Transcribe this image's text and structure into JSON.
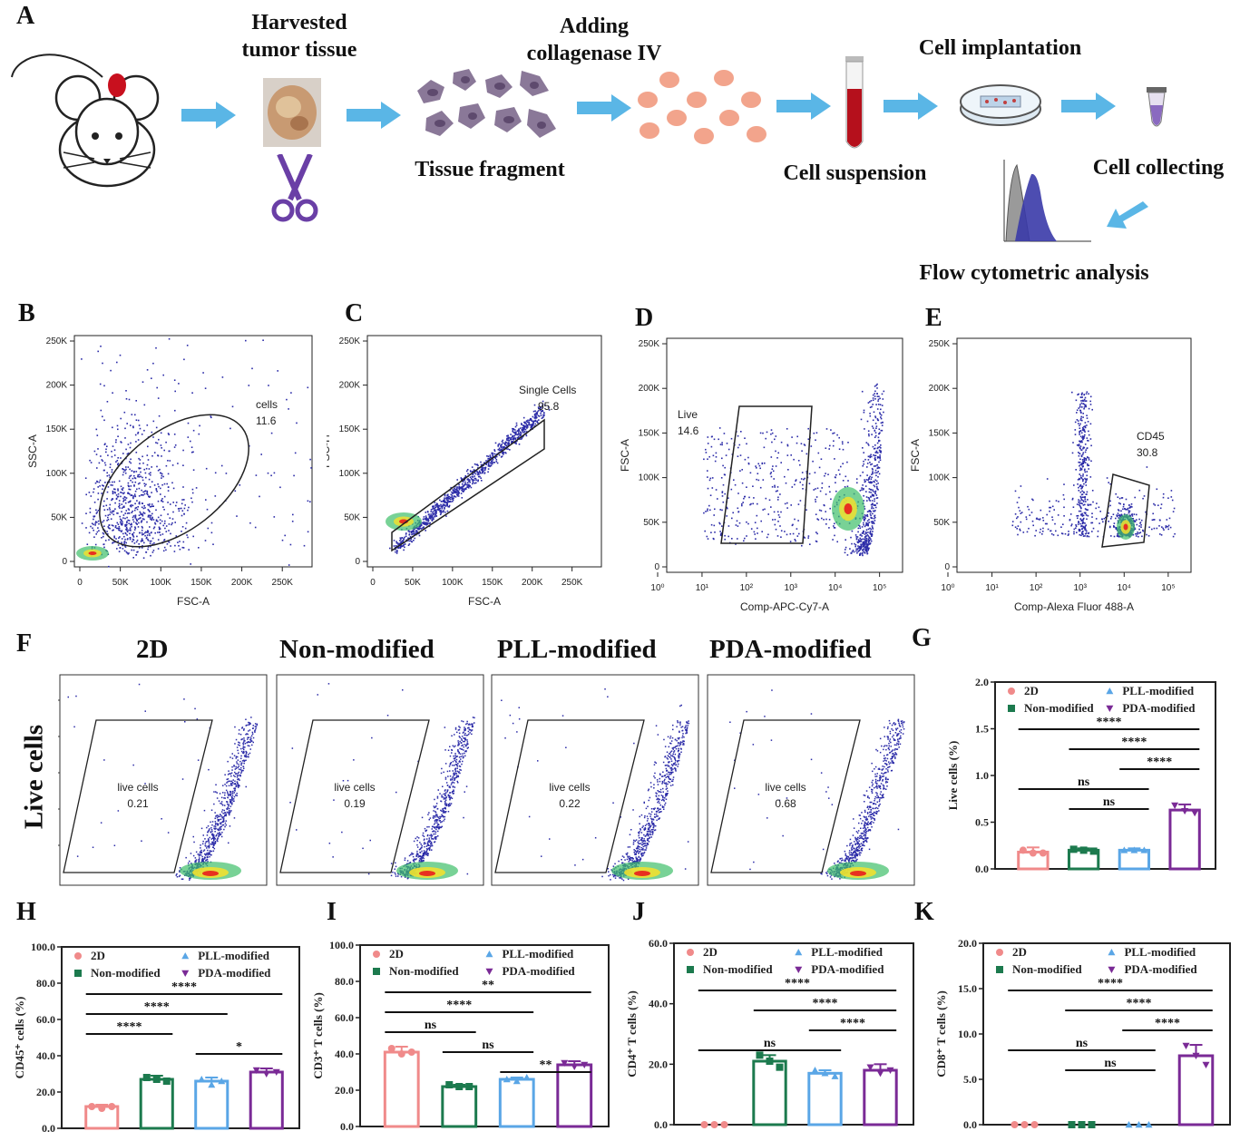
{
  "panel_a": {
    "letter": "A",
    "steps": {
      "harvested": "Harvested\ntumor tissue",
      "tissue_fragment": "Tissue fragment",
      "collagenase": "Adding\ncollagenase IV",
      "cell_suspension": "Cell suspension",
      "cell_implantation": "Cell implantation",
      "cell_collecting": "Cell collecting",
      "flow": "Flow cytometric analysis"
    },
    "colors": {
      "arrow": "#5ab6e6",
      "tumor": "#c8101e",
      "scissors": "#6a3fa6",
      "tissue": "#8a7898",
      "cells": "#f2a48c",
      "blood": "#b5101c"
    }
  },
  "flow_panels": [
    {
      "letter": "B",
      "xlabel": "FSC-A",
      "ylabel": "SSC-A",
      "yticks": [
        "0",
        "50K",
        "100K",
        "150K",
        "200K",
        "250K"
      ],
      "xticks": [
        "0",
        "50K",
        "100K",
        "150K",
        "200K",
        "250K"
      ],
      "gate_name": "cells",
      "gate_value": "11.6"
    },
    {
      "letter": "C",
      "xlabel": "FSC-A",
      "ylabel": "FSC-H",
      "yticks": [
        "0",
        "50K",
        "100K",
        "150K",
        "200K",
        "250K"
      ],
      "xticks": [
        "0",
        "50K",
        "100K",
        "150K",
        "200K",
        "250K"
      ],
      "gate_name": "Single Cells",
      "gate_value": "95.8"
    },
    {
      "letter": "D",
      "xlabel": "Comp-APC-Cy7-A",
      "ylabel": "FSC-A",
      "yticks": [
        "0",
        "50K",
        "100K",
        "150K",
        "200K",
        "250K"
      ],
      "xticks": [
        "10⁰",
        "10¹",
        "10²",
        "10³",
        "10⁴",
        "10⁵"
      ],
      "gate_name": "Live",
      "gate_value": "14.6"
    },
    {
      "letter": "E",
      "xlabel": "Comp-Alexa Fluor 488-A",
      "ylabel": "FSC-A",
      "yticks": [
        "0",
        "50K",
        "100K",
        "150K",
        "200K",
        "250K"
      ],
      "xticks": [
        "10⁰",
        "10¹",
        "10²",
        "10³",
        "10⁴",
        "10⁵"
      ],
      "gate_name": "CD45",
      "gate_value": "30.8"
    }
  ],
  "panel_f": {
    "letter": "F",
    "row_label": "Live cells",
    "plots": [
      {
        "title": "2D",
        "gate_name": "live cells",
        "gate_value": "0.21"
      },
      {
        "title": "Non-modified",
        "gate_name": "live cells",
        "gate_value": "0.19"
      },
      {
        "title": "PLL-modified",
        "gate_name": "live cells",
        "gate_value": "0.22"
      },
      {
        "title": "PDA-modified",
        "gate_name": "live cells",
        "gate_value": "0.68"
      }
    ]
  },
  "legend": {
    "labels": [
      "2D",
      "Non-modified",
      "PLL-modified",
      "PDA-modified"
    ],
    "colors": [
      "#f08a8a",
      "#1c7a4e",
      "#5aa6e6",
      "#7a2a96"
    ]
  },
  "chart_data": [
    {
      "panel": "G",
      "type": "bar",
      "ylabel": "Live cells (%)",
      "categories": [
        "2D",
        "Non-modified",
        "PLL-modified",
        "PDA-modified"
      ],
      "values": [
        0.18,
        0.2,
        0.2,
        0.63
      ],
      "errors": [
        0.05,
        0.02,
        0.02,
        0.06
      ],
      "points": [
        [
          0.2,
          0.17,
          0.17
        ],
        [
          0.21,
          0.2,
          0.19
        ],
        [
          0.2,
          0.2,
          0.2
        ],
        [
          0.68,
          0.62,
          0.6
        ]
      ],
      "yticks": [
        "0.0",
        "0.5",
        "1.0",
        "1.5",
        "2.0"
      ],
      "ylim": [
        0,
        2
      ],
      "significance": [
        {
          "from": 0,
          "to": 3,
          "label": "****"
        },
        {
          "from": 1,
          "to": 3,
          "label": "****"
        },
        {
          "from": 2,
          "to": 3,
          "label": "****"
        },
        {
          "from": 0,
          "to": 2,
          "label": "ns"
        },
        {
          "from": 1,
          "to": 2,
          "label": "ns"
        }
      ]
    },
    {
      "panel": "H",
      "type": "bar",
      "ylabel": "CD45⁺ cells (%)",
      "categories": [
        "2D",
        "Non-modified",
        "PLL-modified",
        "PDA-modified"
      ],
      "values": [
        12,
        27,
        26,
        31
      ],
      "errors": [
        1,
        2,
        2,
        2
      ],
      "points": [
        [
          12,
          11,
          12
        ],
        [
          28,
          27,
          26
        ],
        [
          27,
          24,
          26
        ],
        [
          32,
          30,
          31
        ]
      ],
      "yticks": [
        "0.0",
        "20.0",
        "40.0",
        "60.0",
        "80.0",
        "100.0"
      ],
      "ylim": [
        0,
        100
      ],
      "significance": [
        {
          "from": 0,
          "to": 3,
          "label": "****"
        },
        {
          "from": 0,
          "to": 2,
          "label": "****"
        },
        {
          "from": 0,
          "to": 1,
          "label": "****"
        },
        {
          "from": 2,
          "to": 3,
          "label": "*"
        }
      ]
    },
    {
      "panel": "I",
      "type": "bar",
      "ylabel": "CD3⁺ T cells (%)",
      "categories": [
        "2D",
        "Non-modified",
        "PLL-modified",
        "PDA-modified"
      ],
      "values": [
        41,
        22,
        26,
        34
      ],
      "errors": [
        3,
        1,
        1,
        2
      ],
      "points": [
        [
          43,
          40,
          41
        ],
        [
          23,
          22,
          22
        ],
        [
          26,
          25,
          27
        ],
        [
          35,
          33,
          34
        ]
      ],
      "yticks": [
        "0.0",
        "20.0",
        "40.0",
        "60.0",
        "80.0",
        "100.0"
      ],
      "ylim": [
        0,
        100
      ],
      "significance": [
        {
          "from": 0,
          "to": 3,
          "label": "**"
        },
        {
          "from": 0,
          "to": 2,
          "label": "****"
        },
        {
          "from": 0,
          "to": 1,
          "label": "ns"
        },
        {
          "from": 1,
          "to": 2,
          "label": "ns"
        },
        {
          "from": 2,
          "to": 3,
          "label": "**"
        }
      ]
    },
    {
      "panel": "J",
      "type": "bar",
      "ylabel": "CD4⁺ T cells (%)",
      "categories": [
        "2D",
        "Non-modified",
        "PLL-modified",
        "PDA-modified"
      ],
      "values": [
        0,
        21,
        17,
        18
      ],
      "errors": [
        0,
        2,
        1,
        2
      ],
      "points": [
        [
          0,
          0,
          0
        ],
        [
          23,
          21,
          19
        ],
        [
          18,
          17,
          16
        ],
        [
          19,
          17,
          18
        ]
      ],
      "yticks": [
        "0.0",
        "20.0",
        "40.0",
        "60.0"
      ],
      "ylim": [
        0,
        60
      ],
      "significance": [
        {
          "from": 0,
          "to": 3,
          "label": "****"
        },
        {
          "from": 1,
          "to": 3,
          "label": "****"
        },
        {
          "from": 2,
          "to": 3,
          "label": "****"
        },
        {
          "from": 0,
          "to": 2,
          "label": "ns"
        }
      ]
    },
    {
      "panel": "K",
      "type": "bar",
      "ylabel": "CD8⁺ T cells (%)",
      "categories": [
        "2D",
        "Non-modified",
        "PLL-modified",
        "PDA-modified"
      ],
      "values": [
        0,
        0,
        0,
        7.6
      ],
      "errors": [
        0,
        0,
        0,
        1.2
      ],
      "points": [
        [
          0,
          0,
          0
        ],
        [
          0,
          0,
          0
        ],
        [
          0,
          0,
          0
        ],
        [
          8.7,
          7.6,
          6.6
        ]
      ],
      "yticks": [
        "0.0",
        "5.0",
        "10.0",
        "15.0",
        "20.0"
      ],
      "ylim": [
        0,
        20
      ],
      "significance": [
        {
          "from": 0,
          "to": 3,
          "label": "****"
        },
        {
          "from": 1,
          "to": 3,
          "label": "****"
        },
        {
          "from": 2,
          "to": 3,
          "label": "****"
        },
        {
          "from": 0,
          "to": 2,
          "label": "ns"
        },
        {
          "from": 1,
          "to": 2,
          "label": "ns"
        }
      ]
    }
  ]
}
